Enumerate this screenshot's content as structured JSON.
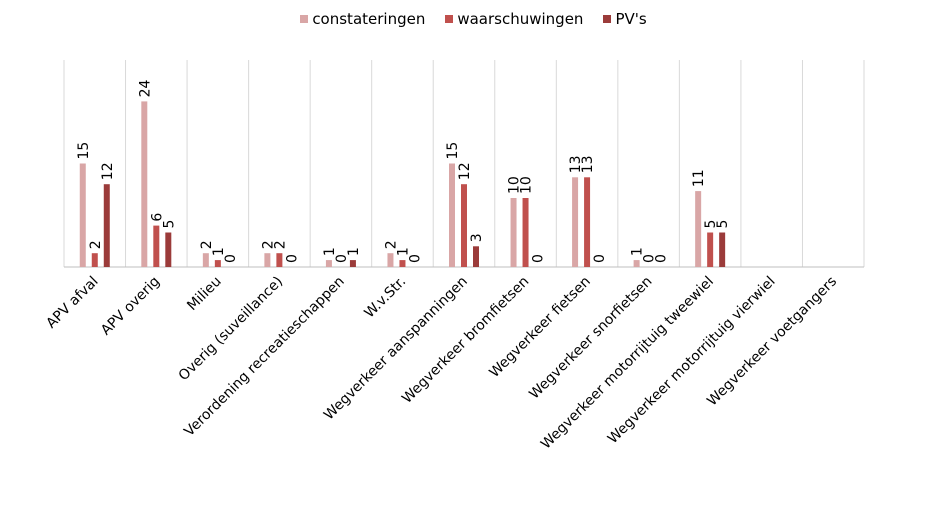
{
  "chart_data": {
    "type": "bar",
    "categories": [
      "APV afval",
      "APV overig",
      "Milieu",
      "Overig (suveillance)",
      "Verordening recreatieschappen",
      "W.v.Str.",
      "Wegverkeer aanspanningen",
      "Wegverkeer bromfietsen",
      "Wegverkeer fietsen",
      "Wegverkeer snorfietsen",
      "Wegverkeer motorrijtuig tweewiel",
      "Wegverkeer motorrijtuig vierwiel",
      "Wegverkeer voetgangers"
    ],
    "series": [
      {
        "name": "constateringen",
        "color": "#d9a6a6",
        "values": [
          15,
          24,
          2,
          2,
          1,
          2,
          15,
          10,
          13,
          1,
          11,
          null,
          null
        ]
      },
      {
        "name": "waarschuwingen",
        "color": "#c0504d",
        "values": [
          2,
          6,
          1,
          2,
          0,
          1,
          12,
          10,
          13,
          0,
          5,
          null,
          null
        ]
      },
      {
        "name": "PV's",
        "color": "#9b3b3a",
        "values": [
          12,
          5,
          0,
          0,
          1,
          0,
          3,
          0,
          0,
          0,
          5,
          null,
          null
        ]
      }
    ],
    "ylim": [
      0,
      30
    ],
    "grid": "vertical category separators",
    "legend": "top"
  }
}
